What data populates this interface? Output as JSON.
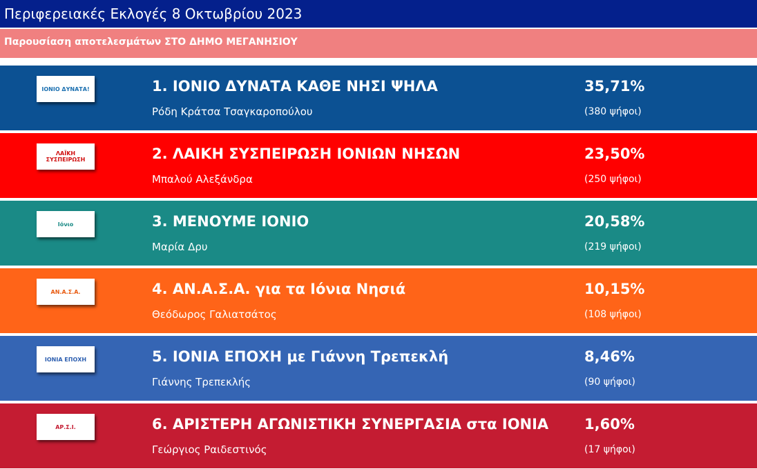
{
  "header": {
    "title": "Περιφερειακές Εκλογές 8 Οκτωβρίου 2023",
    "subtitle": "Παρουσίαση αποτελεσμάτων ΣΤΟ ΔΗΜΟ ΜΕΓΑΝΗΣΙΟΥ"
  },
  "rows": [
    {
      "name": "1. ΙΟΝΙΟ ΔΥΝΑΤΑ ΚΑΘΕ ΝΗΣΙ ΨΗΛΑ",
      "candidate": "Ρόδη Κράτσα Τσαγκαροπούλου",
      "percent": "35,71%",
      "votes": "(380 ψήφοι)",
      "logo": "ΙΟΝΙΟ ΔΥΝΑΤΑ!",
      "color": "#0c5193",
      "logo_color": "#1a6fb0"
    },
    {
      "name": "2. ΛΑΙΚΗ ΣΥΣΠΕΙΡΩΣΗ ΙΟΝΙΩΝ ΝΗΣΩΝ",
      "candidate": "Μπαλού Αλεξάνδρα",
      "percent": "23,50%",
      "votes": "(250 ψήφοι)",
      "logo": "ΛΑΪΚΗ ΣΥΣΠΕΙΡΩΣΗ",
      "color": "#ff0000",
      "logo_color": "#d01010"
    },
    {
      "name": "3. ΜΕΝΟΥΜΕ ΙΟΝΙΟ",
      "candidate": "Μαρία Δρυ",
      "percent": "20,58%",
      "votes": "(219 ψήφοι)",
      "logo": "Ιόνιο",
      "color": "#1a8a86",
      "logo_color": "#1a8a86"
    },
    {
      "name": "4. ΑΝ.Α.Σ.Α. για τα Ιόνια Νησιά",
      "candidate": "Θεόδωρος Γαλιατσάτος",
      "percent": "10,15%",
      "votes": "(108 ψήφοι)",
      "logo": "ΑΝ.Α.Σ.Α.",
      "color": "#ff6418",
      "logo_color": "#e85a10"
    },
    {
      "name": "5. ΙΟΝΙΑ ΕΠΟΧΗ με Γιάννη Τρεπεκλή",
      "candidate": "Γιάννης Τρεπεκλής",
      "percent": "8,46%",
      "votes": "(90 ψήφοι)",
      "logo": "ΙΟΝΙΑ ΕΠΟΧΗ",
      "color": "#3565b4",
      "logo_color": "#2d5fb0"
    },
    {
      "name": "6. ΑΡΙΣΤΕΡΗ ΑΓΩΝΙΣΤΙΚΗ ΣΥΝΕΡΓΑΣΙΑ στα ΙΟΝΙΑ",
      "candidate": "Γεώργιος Ραιδεστινός",
      "percent": "1,60%",
      "votes": "(17 ψήφοι)",
      "logo": "ΑΡ.Σ.Ι.",
      "color": "#c41c32",
      "logo_color": "#c41c32"
    }
  ]
}
